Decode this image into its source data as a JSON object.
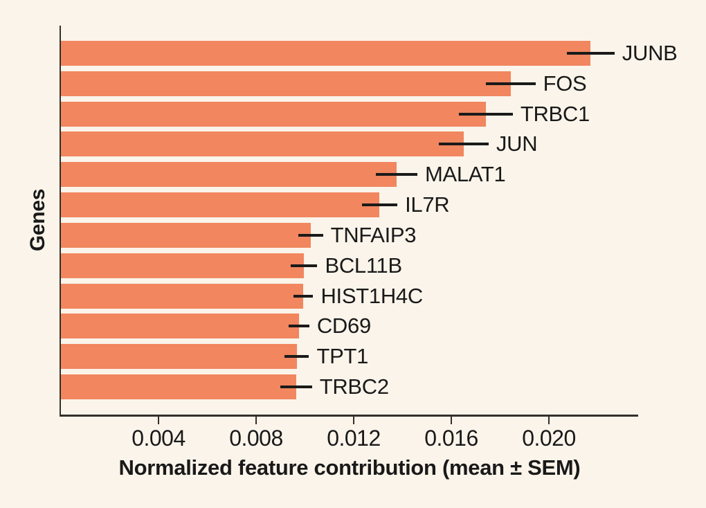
{
  "chart_data": {
    "type": "bar",
    "orientation": "horizontal",
    "title": "",
    "xlabel": "Normalized feature contribution (mean ± SEM)",
    "ylabel": "Genes",
    "categories": [
      "JUNB",
      "FOS",
      "TRBC1",
      "JUN",
      "MALAT1",
      "IL7R",
      "TNFAIP3",
      "BCL11B",
      "HIST1H4C",
      "CD69",
      "TPT1",
      "TRBC2"
    ],
    "series": [
      {
        "name": "mean normalized feature contribution",
        "values": [
          0.02171,
          0.01844,
          0.01742,
          0.01651,
          0.01376,
          0.01306,
          0.01024,
          0.00996,
          0.00993,
          0.00976,
          0.00967,
          0.00964
        ],
        "sem": [
          0.00098,
          0.00101,
          0.0011,
          0.00102,
          0.00085,
          0.00073,
          0.0005,
          0.00055,
          0.00041,
          0.00042,
          0.0005,
          0.00065
        ]
      }
    ],
    "xlim": [
      0,
      0.02366
    ],
    "xticks": [
      0.004,
      0.008,
      0.012,
      0.016,
      0.02
    ],
    "xtick_labels": [
      "0.004",
      "0.008",
      "0.012",
      "0.016",
      "0.020"
    ],
    "grid": false,
    "legend": "none",
    "error_bars": "horizontal, no caps, centered on bar end",
    "colors": {
      "bar": "#F1865F",
      "background": "#FAF4EA",
      "axis": "#33302A",
      "error_bar": "#1A1A1A",
      "text": "#191919"
    }
  }
}
